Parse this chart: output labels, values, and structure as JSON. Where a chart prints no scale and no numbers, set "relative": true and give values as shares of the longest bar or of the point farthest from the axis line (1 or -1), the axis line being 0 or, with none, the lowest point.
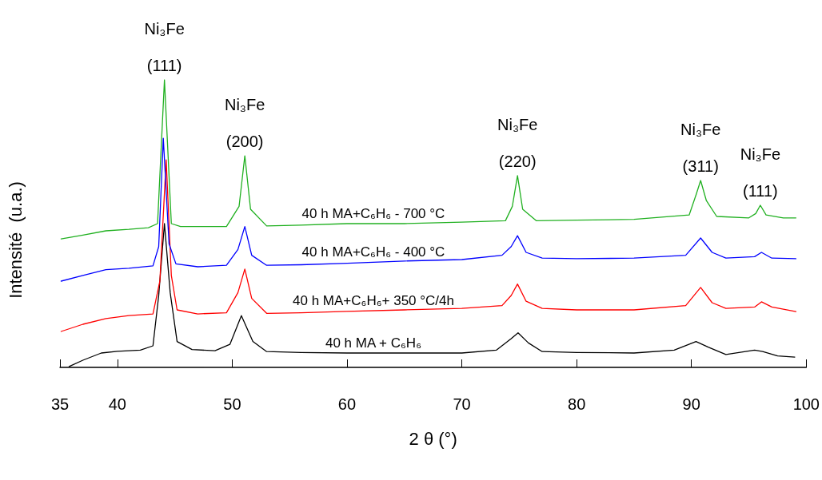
{
  "chart_data": {
    "type": "line",
    "relative": true,
    "xlabel": "2 θ (°)",
    "ylabel": "Intensité  (u.a.)",
    "xlim": [
      35,
      100
    ],
    "xticks": [
      35,
      40,
      50,
      60,
      70,
      80,
      90,
      100
    ],
    "grid": false,
    "legend": false,
    "marker": "none",
    "line_style": "solid",
    "series": [
      {
        "name": "40 h MA + C₆H₆",
        "color": "#000000",
        "x": [
          35.8,
          37,
          38.6,
          40,
          42,
          43.1,
          43.6,
          44.1,
          44.6,
          45.2,
          46.5,
          48.5,
          49.8,
          50.8,
          51.8,
          53,
          56,
          60,
          65,
          70,
          73,
          74.3,
          74.9,
          75.8,
          77,
          80,
          85,
          88.5,
          90.4,
          91.5,
          93,
          95.5,
          96.2,
          97.5,
          99
        ],
        "values": [
          0.003,
          0.025,
          0.05,
          0.056,
          0.06,
          0.075,
          0.25,
          0.5,
          0.26,
          0.09,
          0.062,
          0.058,
          0.08,
          0.18,
          0.09,
          0.055,
          0.052,
          0.05,
          0.05,
          0.05,
          0.06,
          0.1,
          0.12,
          0.085,
          0.055,
          0.052,
          0.05,
          0.06,
          0.09,
          0.07,
          0.045,
          0.06,
          0.055,
          0.04,
          0.036
        ]
      },
      {
        "name": "40 h MA+C₆H₆+ 350 °C/4h",
        "color": "#ff0000",
        "x": [
          35.1,
          37,
          39,
          41,
          43.1,
          43.7,
          44.25,
          44.7,
          45.2,
          47,
          49.5,
          50.5,
          51.1,
          51.7,
          53,
          56,
          60,
          65,
          70,
          73.5,
          74.3,
          74.85,
          75.6,
          77,
          80,
          85,
          89.5,
          90.8,
          91.8,
          93,
          95.5,
          96.1,
          97,
          99.1
        ],
        "values": [
          0.125,
          0.15,
          0.17,
          0.18,
          0.186,
          0.3,
          0.722,
          0.32,
          0.2,
          0.186,
          0.19,
          0.26,
          0.342,
          0.24,
          0.188,
          0.19,
          0.195,
          0.2,
          0.205,
          0.215,
          0.25,
          0.29,
          0.23,
          0.205,
          0.2,
          0.2,
          0.215,
          0.278,
          0.225,
          0.205,
          0.21,
          0.228,
          0.21,
          0.194
        ]
      },
      {
        "name": "40 h MA+C₆H₆ - 400 °C",
        "color": "#0000ff",
        "x": [
          35.1,
          37,
          39,
          41,
          43.1,
          43.6,
          44.0,
          44.5,
          45.1,
          47,
          49.5,
          50.5,
          51.1,
          51.7,
          53,
          56,
          60,
          65,
          70,
          73.5,
          74.3,
          74.85,
          75.6,
          77,
          80,
          85,
          89.5,
          90.8,
          91.8,
          93,
          95.5,
          96.1,
          97,
          99.1
        ],
        "values": [
          0.3,
          0.32,
          0.34,
          0.345,
          0.353,
          0.42,
          0.797,
          0.43,
          0.36,
          0.35,
          0.355,
          0.41,
          0.49,
          0.39,
          0.355,
          0.357,
          0.362,
          0.37,
          0.375,
          0.39,
          0.42,
          0.458,
          0.4,
          0.38,
          0.378,
          0.38,
          0.39,
          0.45,
          0.4,
          0.38,
          0.385,
          0.4,
          0.38,
          0.378
        ]
      },
      {
        "name": "40 h MA+C₆H₆ - 700 °C",
        "color": "#20b020",
        "x": [
          35.1,
          37,
          39,
          41,
          42.7,
          43.5,
          44.1,
          44.7,
          45.5,
          47,
          49.5,
          50.6,
          51.1,
          51.6,
          53,
          56,
          60,
          65,
          70,
          73.8,
          74.4,
          74.85,
          75.3,
          76.5,
          80,
          85,
          89.8,
          90.4,
          90.8,
          91.3,
          92.2,
          95,
          95.6,
          96.0,
          96.5,
          98,
          99.1
        ],
        "values": [
          0.447,
          0.46,
          0.475,
          0.48,
          0.486,
          0.5,
          1.0,
          0.5,
          0.49,
          0.49,
          0.49,
          0.56,
          0.736,
          0.55,
          0.492,
          0.495,
          0.5,
          0.5,
          0.505,
          0.51,
          0.56,
          0.667,
          0.55,
          0.51,
          0.512,
          0.515,
          0.53,
          0.6,
          0.65,
          0.58,
          0.525,
          0.52,
          0.535,
          0.564,
          0.53,
          0.52,
          0.52
        ]
      }
    ],
    "annotations": [
      {
        "text": "Ni₃Fe",
        "x": 44.1,
        "y": 1.0
      },
      {
        "text": "(111)",
        "x": 44.1,
        "y": 1.0
      },
      {
        "text": "Ni₃Fe",
        "x": 51.1,
        "y": 0.736
      },
      {
        "text": "(200)",
        "x": 51.1,
        "y": 0.736
      },
      {
        "text": "Ni₃Fe",
        "x": 74.85,
        "y": 0.667
      },
      {
        "text": "(220)",
        "x": 74.85,
        "y": 0.667
      },
      {
        "text": "Ni₃Fe",
        "x": 90.8,
        "y": 0.65
      },
      {
        "text": "(311)",
        "x": 90.8,
        "y": 0.65
      },
      {
        "text": "Ni₃Fe",
        "x": 96.0,
        "y": 0.564
      },
      {
        "text": "(111)",
        "x": 96.0,
        "y": 0.564
      }
    ]
  }
}
